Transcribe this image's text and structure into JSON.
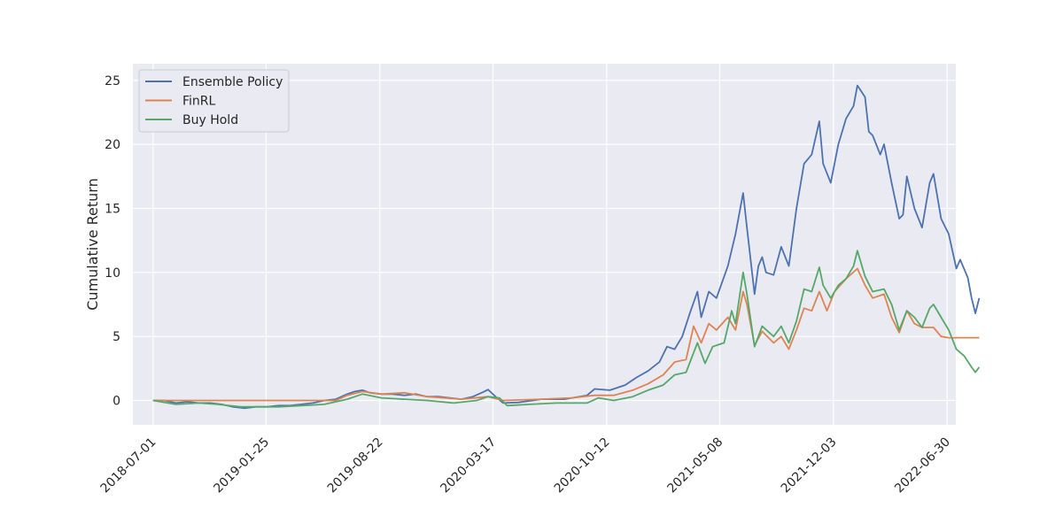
{
  "chart_data": {
    "type": "line",
    "title": "",
    "xlabel": "",
    "ylabel": "Cumulative Return",
    "x_tick_labels": [
      "2018-07-01",
      "2019-01-25",
      "2019-08-22",
      "2020-03-17",
      "2020-10-12",
      "2021-05-08",
      "2021-12-03",
      "2022-06-30"
    ],
    "y_ticks": [
      0,
      5,
      10,
      15,
      20,
      25
    ],
    "xlim": [
      "2018-05-25",
      "2022-07-16"
    ],
    "ylim": [
      -1.9,
      26.3
    ],
    "grid": true,
    "legend_position": "upper-left",
    "background": "#eaeaf2",
    "series": [
      {
        "name": "Ensemble Policy",
        "color": "#4c72b0",
        "points": [
          [
            "2018-07-01",
            0.0
          ],
          [
            "2018-07-22",
            0.0
          ],
          [
            "2018-08-12",
            -0.2
          ],
          [
            "2018-09-02",
            -0.1
          ],
          [
            "2018-09-23",
            -0.2
          ],
          [
            "2018-10-14",
            -0.2
          ],
          [
            "2018-11-04",
            -0.3
          ],
          [
            "2018-11-25",
            -0.5
          ],
          [
            "2018-12-16",
            -0.6
          ],
          [
            "2019-01-06",
            -0.5
          ],
          [
            "2019-01-27",
            -0.5
          ],
          [
            "2019-02-17",
            -0.4
          ],
          [
            "2019-03-10",
            -0.4
          ],
          [
            "2019-03-31",
            -0.3
          ],
          [
            "2019-04-21",
            -0.2
          ],
          [
            "2019-05-12",
            0.0
          ],
          [
            "2019-06-02",
            0.1
          ],
          [
            "2019-06-23",
            0.5
          ],
          [
            "2019-07-07",
            0.7
          ],
          [
            "2019-07-21",
            0.8
          ],
          [
            "2019-08-04",
            0.6
          ],
          [
            "2019-08-25",
            0.5
          ],
          [
            "2019-09-15",
            0.5
          ],
          [
            "2019-10-06",
            0.4
          ],
          [
            "2019-10-27",
            0.5
          ],
          [
            "2019-11-17",
            0.3
          ],
          [
            "2019-12-08",
            0.3
          ],
          [
            "2019-12-29",
            0.2
          ],
          [
            "2020-01-19",
            0.1
          ],
          [
            "2020-02-09",
            0.3
          ],
          [
            "2020-03-01",
            0.7
          ],
          [
            "2020-03-08",
            0.85
          ],
          [
            "2020-03-22",
            0.3
          ],
          [
            "2020-04-05",
            -0.2
          ],
          [
            "2020-05-03",
            -0.15
          ],
          [
            "2020-06-14",
            0.1
          ],
          [
            "2020-07-26",
            0.1
          ],
          [
            "2020-09-06",
            0.4
          ],
          [
            "2020-09-20",
            0.9
          ],
          [
            "2020-10-18",
            0.8
          ],
          [
            "2020-11-15",
            1.2
          ],
          [
            "2020-12-06",
            1.8
          ],
          [
            "2020-12-27",
            2.3
          ],
          [
            "2021-01-17",
            3.0
          ],
          [
            "2021-01-31",
            4.2
          ],
          [
            "2021-02-14",
            4.0
          ],
          [
            "2021-02-28",
            5.0
          ],
          [
            "2021-03-14",
            6.8
          ],
          [
            "2021-03-28",
            8.5
          ],
          [
            "2021-04-04",
            6.5
          ],
          [
            "2021-04-18",
            8.5
          ],
          [
            "2021-05-02",
            8.0
          ],
          [
            "2021-05-23",
            10.5
          ],
          [
            "2021-06-06",
            13.0
          ],
          [
            "2021-06-20",
            16.2
          ],
          [
            "2021-06-27",
            13.5
          ],
          [
            "2021-07-11",
            8.3
          ],
          [
            "2021-07-18",
            10.5
          ],
          [
            "2021-07-25",
            11.2
          ],
          [
            "2021-08-01",
            10.0
          ],
          [
            "2021-08-15",
            9.8
          ],
          [
            "2021-08-29",
            12.0
          ],
          [
            "2021-09-12",
            10.5
          ],
          [
            "2021-09-26",
            15.0
          ],
          [
            "2021-10-10",
            18.5
          ],
          [
            "2021-10-24",
            19.2
          ],
          [
            "2021-11-07",
            21.8
          ],
          [
            "2021-11-14",
            18.5
          ],
          [
            "2021-11-28",
            17.0
          ],
          [
            "2021-12-12",
            20.0
          ],
          [
            "2021-12-26",
            22.0
          ],
          [
            "2022-01-09",
            23.0
          ],
          [
            "2022-01-16",
            24.6
          ],
          [
            "2022-01-30",
            23.7
          ],
          [
            "2022-02-06",
            21.0
          ],
          [
            "2022-02-13",
            20.7
          ],
          [
            "2022-02-27",
            19.2
          ],
          [
            "2022-03-06",
            20.0
          ],
          [
            "2022-03-20",
            17.0
          ],
          [
            "2022-04-03",
            14.2
          ],
          [
            "2022-04-10",
            14.5
          ],
          [
            "2022-04-17",
            17.5
          ],
          [
            "2022-05-01",
            15.0
          ],
          [
            "2022-05-15",
            13.5
          ],
          [
            "2022-05-29",
            17.0
          ],
          [
            "2022-06-05",
            17.7
          ],
          [
            "2022-06-19",
            14.2
          ],
          [
            "2022-07-03",
            13.0
          ],
          [
            "2022-07-17",
            10.3
          ],
          [
            "2022-07-24",
            11.0
          ],
          [
            "2022-08-07",
            9.6
          ],
          [
            "2022-08-14",
            8.0
          ],
          [
            "2022-08-21",
            6.8
          ],
          [
            "2022-08-28",
            8.0
          ]
        ]
      },
      {
        "name": "FinRL",
        "color": "#dd8452",
        "points": [
          [
            "2018-07-01",
            0.0
          ],
          [
            "2019-04-21",
            0.0
          ],
          [
            "2019-06-02",
            0.0
          ],
          [
            "2019-06-23",
            0.4
          ],
          [
            "2019-07-21",
            0.7
          ],
          [
            "2019-08-25",
            0.5
          ],
          [
            "2019-10-06",
            0.6
          ],
          [
            "2019-11-17",
            0.3
          ],
          [
            "2020-01-19",
            0.1
          ],
          [
            "2020-03-08",
            0.3
          ],
          [
            "2020-04-05",
            0.0
          ],
          [
            "2020-06-14",
            0.1
          ],
          [
            "2020-08-09",
            0.2
          ],
          [
            "2020-09-20",
            0.4
          ],
          [
            "2020-10-25",
            0.4
          ],
          [
            "2020-11-29",
            0.8
          ],
          [
            "2020-12-27",
            1.3
          ],
          [
            "2021-01-24",
            2.0
          ],
          [
            "2021-02-14",
            3.0
          ],
          [
            "2021-03-07",
            3.2
          ],
          [
            "2021-03-21",
            5.8
          ],
          [
            "2021-04-04",
            4.5
          ],
          [
            "2021-04-18",
            6.0
          ],
          [
            "2021-05-02",
            5.5
          ],
          [
            "2021-05-23",
            6.5
          ],
          [
            "2021-06-06",
            5.5
          ],
          [
            "2021-06-20",
            8.5
          ],
          [
            "2021-06-27",
            7.5
          ],
          [
            "2021-07-11",
            4.3
          ],
          [
            "2021-07-25",
            5.4
          ],
          [
            "2021-08-15",
            4.5
          ],
          [
            "2021-08-29",
            5.0
          ],
          [
            "2021-09-12",
            4.0
          ],
          [
            "2021-09-26",
            5.5
          ],
          [
            "2021-10-10",
            7.2
          ],
          [
            "2021-10-24",
            7.0
          ],
          [
            "2021-11-07",
            8.5
          ],
          [
            "2021-11-21",
            7.0
          ],
          [
            "2021-12-05",
            8.5
          ],
          [
            "2021-12-26",
            9.5
          ],
          [
            "2022-01-16",
            10.3
          ],
          [
            "2022-01-30",
            9.0
          ],
          [
            "2022-02-13",
            8.0
          ],
          [
            "2022-03-06",
            8.3
          ],
          [
            "2022-03-20",
            6.5
          ],
          [
            "2022-04-03",
            5.3
          ],
          [
            "2022-04-17",
            7.0
          ],
          [
            "2022-05-01",
            6.0
          ],
          [
            "2022-05-15",
            5.7
          ],
          [
            "2022-06-05",
            5.7
          ],
          [
            "2022-06-19",
            5.0
          ],
          [
            "2022-07-03",
            4.9
          ],
          [
            "2022-08-28",
            4.9
          ]
        ]
      },
      {
        "name": "Buy Hold",
        "color": "#55a868",
        "points": [
          [
            "2018-07-01",
            0.0
          ],
          [
            "2018-08-12",
            -0.3
          ],
          [
            "2018-09-23",
            -0.2
          ],
          [
            "2018-10-28",
            -0.3
          ],
          [
            "2018-12-09",
            -0.5
          ],
          [
            "2019-01-06",
            -0.5
          ],
          [
            "2019-02-17",
            -0.5
          ],
          [
            "2019-03-31",
            -0.4
          ],
          [
            "2019-05-12",
            -0.3
          ],
          [
            "2019-06-23",
            0.1
          ],
          [
            "2019-07-21",
            0.5
          ],
          [
            "2019-08-25",
            0.2
          ],
          [
            "2019-10-06",
            0.1
          ],
          [
            "2019-11-17",
            0.0
          ],
          [
            "2020-01-05",
            -0.2
          ],
          [
            "2020-02-16",
            0.0
          ],
          [
            "2020-03-08",
            0.3
          ],
          [
            "2020-03-29",
            0.2
          ],
          [
            "2020-04-12",
            -0.4
          ],
          [
            "2020-05-24",
            -0.3
          ],
          [
            "2020-07-12",
            -0.2
          ],
          [
            "2020-09-06",
            -0.2
          ],
          [
            "2020-09-27",
            0.2
          ],
          [
            "2020-10-25",
            0.0
          ],
          [
            "2020-11-29",
            0.3
          ],
          [
            "2020-12-27",
            0.8
          ],
          [
            "2021-01-24",
            1.2
          ],
          [
            "2021-02-14",
            2.0
          ],
          [
            "2021-03-07",
            2.2
          ],
          [
            "2021-03-28",
            4.5
          ],
          [
            "2021-04-11",
            2.9
          ],
          [
            "2021-04-25",
            4.2
          ],
          [
            "2021-05-16",
            4.5
          ],
          [
            "2021-05-30",
            7.0
          ],
          [
            "2021-06-06",
            6.0
          ],
          [
            "2021-06-20",
            10.0
          ],
          [
            "2021-06-27",
            8.3
          ],
          [
            "2021-07-11",
            4.2
          ],
          [
            "2021-07-25",
            5.8
          ],
          [
            "2021-08-15",
            5.0
          ],
          [
            "2021-08-29",
            5.8
          ],
          [
            "2021-09-12",
            4.5
          ],
          [
            "2021-09-26",
            6.2
          ],
          [
            "2021-10-10",
            8.7
          ],
          [
            "2021-10-24",
            8.5
          ],
          [
            "2021-11-07",
            10.4
          ],
          [
            "2021-11-14",
            9.0
          ],
          [
            "2021-11-28",
            8.0
          ],
          [
            "2021-12-12",
            9.0
          ],
          [
            "2021-12-26",
            9.5
          ],
          [
            "2022-01-09",
            10.5
          ],
          [
            "2022-01-16",
            11.7
          ],
          [
            "2022-01-30",
            9.7
          ],
          [
            "2022-02-13",
            8.5
          ],
          [
            "2022-03-06",
            8.7
          ],
          [
            "2022-03-20",
            7.5
          ],
          [
            "2022-04-03",
            5.5
          ],
          [
            "2022-04-17",
            7.0
          ],
          [
            "2022-05-01",
            6.5
          ],
          [
            "2022-05-15",
            5.7
          ],
          [
            "2022-05-29",
            7.2
          ],
          [
            "2022-06-05",
            7.5
          ],
          [
            "2022-06-19",
            6.5
          ],
          [
            "2022-07-03",
            5.5
          ],
          [
            "2022-07-17",
            4.0
          ],
          [
            "2022-07-31",
            3.5
          ],
          [
            "2022-08-14",
            2.6
          ],
          [
            "2022-08-21",
            2.2
          ],
          [
            "2022-08-28",
            2.6
          ]
        ]
      }
    ]
  }
}
